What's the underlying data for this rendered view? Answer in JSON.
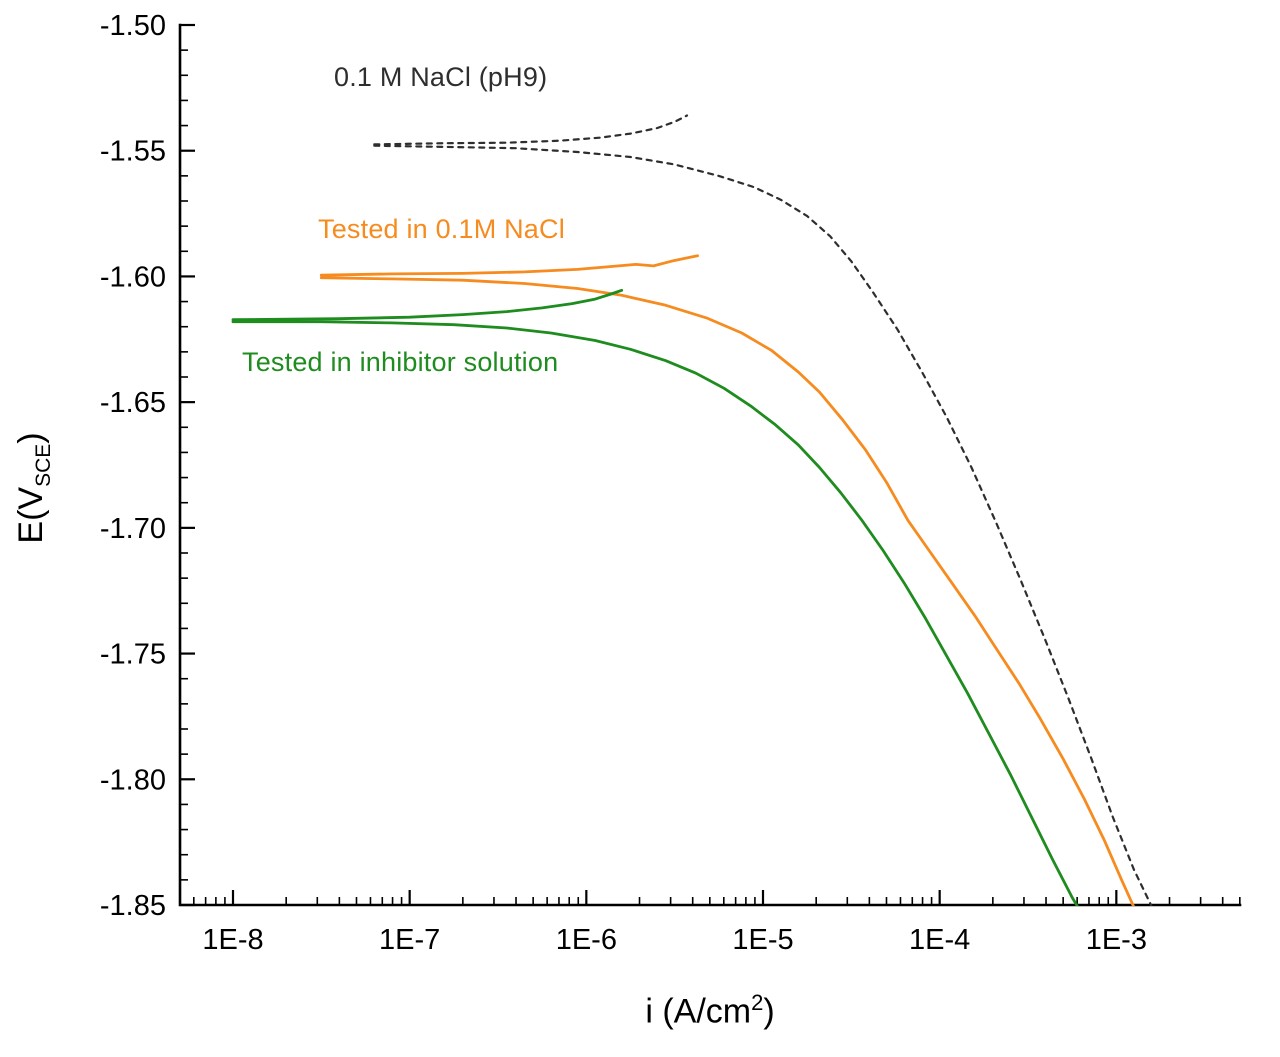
{
  "chart_data": {
    "type": "line",
    "title": "",
    "xlabel": {
      "pre": "i (A/cm",
      "sup": "2",
      "post": ")"
    },
    "ylabel": {
      "pre": "E(V",
      "sub": "SCE",
      "post": ")"
    },
    "x_axis": {
      "scale": "log",
      "min_log": -8.3,
      "max_log": -2.3,
      "major_ticks": [
        {
          "log": -8,
          "label": "1E-8"
        },
        {
          "log": -7,
          "label": "1E-7"
        },
        {
          "log": -6,
          "label": "1E-6"
        },
        {
          "log": -5,
          "label": "1E-5"
        },
        {
          "log": -4,
          "label": "1E-4"
        },
        {
          "log": -3,
          "label": "1E-3"
        }
      ]
    },
    "y_axis": {
      "min": -1.85,
      "max": -1.5,
      "major_ticks": [
        {
          "value": -1.5,
          "label": "-1.50"
        },
        {
          "value": -1.55,
          "label": "-1.55"
        },
        {
          "value": -1.6,
          "label": "-1.60"
        },
        {
          "value": -1.65,
          "label": "-1.65"
        },
        {
          "value": -1.7,
          "label": "-1.70"
        },
        {
          "value": -1.75,
          "label": "-1.75"
        },
        {
          "value": -1.8,
          "label": "-1.80"
        },
        {
          "value": -1.85,
          "label": "-1.85"
        }
      ],
      "minor_tick_step": 0.01
    },
    "series": [
      {
        "name": "0.1 M NaCl (pH9)",
        "color": "#2e2e2e",
        "style": "dashed",
        "branches": {
          "anodic": [
            [
              -7.2,
              -1.5475
            ],
            [
              -6.8,
              -1.547
            ],
            [
              -6.45,
              -1.5468
            ],
            [
              -6.15,
              -1.546
            ],
            [
              -5.92,
              -1.5448
            ],
            [
              -5.75,
              -1.5432
            ],
            [
              -5.6,
              -1.541
            ],
            [
              -5.5,
              -1.5385
            ],
            [
              -5.43,
              -1.536
            ]
          ],
          "cathodic": [
            [
              -7.2,
              -1.548
            ],
            [
              -6.8,
              -1.5485
            ],
            [
              -6.4,
              -1.549
            ],
            [
              -6.05,
              -1.5505
            ],
            [
              -5.75,
              -1.5525
            ],
            [
              -5.5,
              -1.5555
            ],
            [
              -5.25,
              -1.56
            ],
            [
              -5.05,
              -1.5645
            ],
            [
              -4.9,
              -1.5695
            ],
            [
              -4.75,
              -1.576
            ],
            [
              -4.62,
              -1.584
            ],
            [
              -4.5,
              -1.594
            ],
            [
              -4.38,
              -1.606
            ],
            [
              -4.24,
              -1.621
            ],
            [
              -4.1,
              -1.638
            ],
            [
              -3.96,
              -1.656
            ],
            [
              -3.82,
              -1.676
            ],
            [
              -3.68,
              -1.698
            ],
            [
              -3.54,
              -1.721
            ],
            [
              -3.4,
              -1.745
            ],
            [
              -3.27,
              -1.768
            ],
            [
              -3.14,
              -1.792
            ],
            [
              -3.02,
              -1.815
            ],
            [
              -2.9,
              -1.836
            ],
            [
              -2.79,
              -1.852
            ],
            [
              -2.7,
              -1.862
            ]
          ]
        }
      },
      {
        "name": "Tested in 0.1M NaCl",
        "color": "#f68b1f",
        "style": "solid",
        "branches": {
          "anodic": [
            [
              -7.5,
              -1.5995
            ],
            [
              -7.1,
              -1.599
            ],
            [
              -6.7,
              -1.5988
            ],
            [
              -6.35,
              -1.5982
            ],
            [
              -6.05,
              -1.5972
            ],
            [
              -5.85,
              -1.596
            ],
            [
              -5.72,
              -1.5952
            ],
            [
              -5.62,
              -1.5958
            ],
            [
              -5.52,
              -1.594
            ],
            [
              -5.44,
              -1.5928
            ],
            [
              -5.37,
              -1.5918
            ]
          ],
          "cathodic": [
            [
              -7.5,
              -1.6005
            ],
            [
              -7.1,
              -1.601
            ],
            [
              -6.7,
              -1.6015
            ],
            [
              -6.35,
              -1.6028
            ],
            [
              -6.05,
              -1.6048
            ],
            [
              -5.8,
              -1.6075
            ],
            [
              -5.55,
              -1.6115
            ],
            [
              -5.32,
              -1.6165
            ],
            [
              -5.12,
              -1.6225
            ],
            [
              -4.95,
              -1.6295
            ],
            [
              -4.8,
              -1.638
            ],
            [
              -4.68,
              -1.646
            ],
            [
              -4.55,
              -1.657
            ],
            [
              -4.42,
              -1.669
            ],
            [
              -4.3,
              -1.682
            ],
            [
              -4.18,
              -1.697
            ],
            [
              -4.06,
              -1.709
            ],
            [
              -3.94,
              -1.721
            ],
            [
              -3.8,
              -1.735
            ],
            [
              -3.68,
              -1.748
            ],
            [
              -3.55,
              -1.762
            ],
            [
              -3.43,
              -1.776
            ],
            [
              -3.3,
              -1.792
            ],
            [
              -3.18,
              -1.808
            ],
            [
              -3.07,
              -1.824
            ],
            [
              -2.97,
              -1.84
            ],
            [
              -2.88,
              -1.854
            ],
            [
              -2.8,
              -1.865
            ]
          ]
        }
      },
      {
        "name": "Tested in inhibitor solution",
        "color": "#1e8c1e",
        "style": "solid",
        "branches": {
          "anodic": [
            [
              -8.0,
              -1.6172
            ],
            [
              -7.4,
              -1.6168
            ],
            [
              -7.0,
              -1.6162
            ],
            [
              -6.7,
              -1.6152
            ],
            [
              -6.45,
              -1.614
            ],
            [
              -6.25,
              -1.6125
            ],
            [
              -6.08,
              -1.6108
            ],
            [
              -5.95,
              -1.609
            ],
            [
              -5.86,
              -1.607
            ],
            [
              -5.8,
              -1.6055
            ]
          ],
          "cathodic": [
            [
              -8.0,
              -1.618
            ],
            [
              -7.5,
              -1.618
            ],
            [
              -7.1,
              -1.6185
            ],
            [
              -6.75,
              -1.6192
            ],
            [
              -6.45,
              -1.6205
            ],
            [
              -6.2,
              -1.6225
            ],
            [
              -5.95,
              -1.6255
            ],
            [
              -5.75,
              -1.629
            ],
            [
              -5.55,
              -1.6335
            ],
            [
              -5.38,
              -1.6385
            ],
            [
              -5.22,
              -1.6445
            ],
            [
              -5.07,
              -1.6515
            ],
            [
              -4.93,
              -1.659
            ],
            [
              -4.8,
              -1.667
            ],
            [
              -4.68,
              -1.676
            ],
            [
              -4.56,
              -1.686
            ],
            [
              -4.44,
              -1.697
            ],
            [
              -4.32,
              -1.709
            ],
            [
              -4.2,
              -1.722
            ],
            [
              -4.08,
              -1.736
            ],
            [
              -3.96,
              -1.751
            ],
            [
              -3.84,
              -1.766
            ],
            [
              -3.72,
              -1.782
            ],
            [
              -3.6,
              -1.798
            ],
            [
              -3.48,
              -1.815
            ],
            [
              -3.36,
              -1.832
            ],
            [
              -3.25,
              -1.847
            ],
            [
              -3.15,
              -1.859
            ]
          ]
        }
      }
    ],
    "annotations": [
      {
        "text": "0.1 M NaCl (pH9)",
        "color": "#2e2e2e"
      },
      {
        "text": "Tested in 0.1M NaCl",
        "color": "#f68b1f"
      },
      {
        "text": "Tested in inhibitor solution",
        "color": "#1e8c1e"
      }
    ],
    "legend": "none",
    "grid": false,
    "background": "#ffffff"
  }
}
